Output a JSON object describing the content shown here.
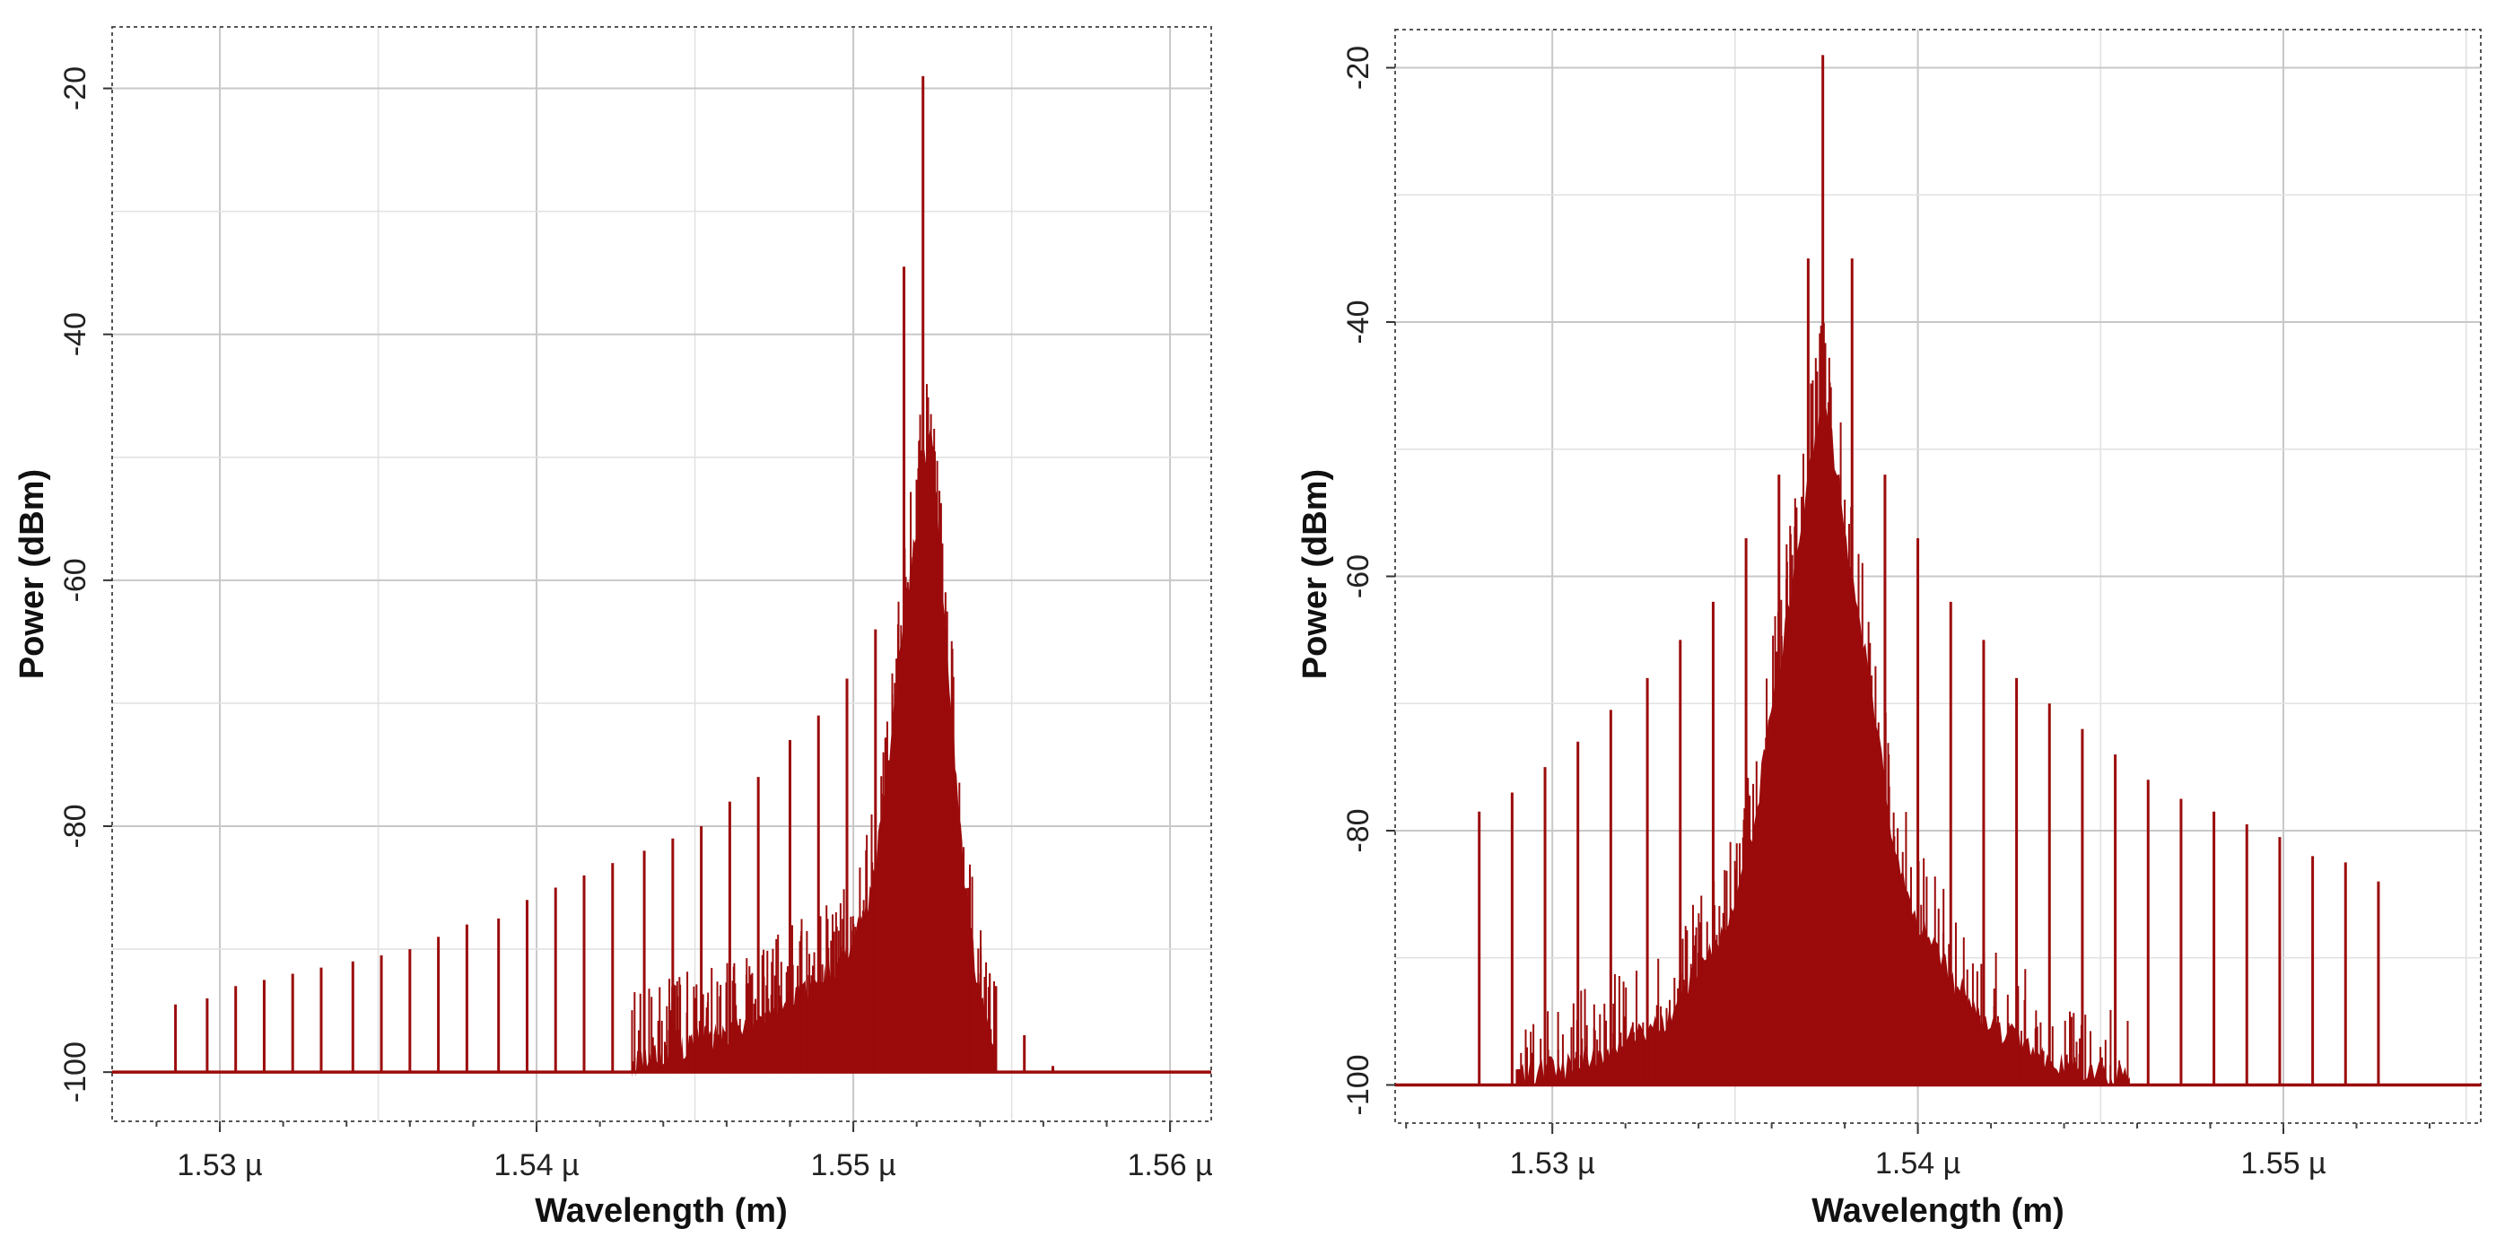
{
  "colors": {
    "trace": "#9b0b0b",
    "grid_major": "#c8c8c8",
    "grid_minor": "#e2e2e2",
    "frame": "#555555",
    "background": "#ffffff"
  },
  "chart_data": [
    {
      "type": "line",
      "title": "",
      "xlabel": "Wavelength (m)",
      "ylabel": "Power (dBm)",
      "xlim": [
        1.5266,
        1.5613
      ],
      "ylim": [
        -104,
        -15
      ],
      "x_ticks": [
        1.53,
        1.54,
        1.55,
        1.56
      ],
      "x_tick_labels": [
        "1.53 µ",
        "1.54 µ",
        "1.55 µ",
        "1.56 µ"
      ],
      "y_ticks": [
        -20,
        -40,
        -60,
        -80,
        -100
      ],
      "y_tick_labels": [
        "-20",
        "-40",
        "-60",
        "-80",
        "-100"
      ],
      "noise_floor": -100,
      "center_wavelength": 1.5522,
      "series": [
        {
          "name": "comb lines",
          "wavelengths": [
            1.5286,
            1.5296,
            1.5305,
            1.5314,
            1.5323,
            1.5332,
            1.5342,
            1.5351,
            1.536,
            1.5369,
            1.5378,
            1.5388,
            1.5397,
            1.5406,
            1.5415,
            1.5424,
            1.5434,
            1.5443,
            1.5452,
            1.5461,
            1.547,
            1.548,
            1.5489,
            1.5498,
            1.5507,
            1.5516,
            1.5522,
            1.5528,
            1.5536,
            1.5545,
            1.5554,
            1.5563
          ],
          "power_dbm": [
            -94.5,
            -94,
            -93,
            -92.5,
            -92,
            -91.5,
            -91,
            -90.5,
            -90,
            -89,
            -88,
            -87.5,
            -86,
            -85,
            -84,
            -83,
            -82,
            -81,
            -80,
            -78,
            -76,
            -73,
            -71,
            -68,
            -64,
            -34.5,
            -19,
            -57,
            -89,
            -93,
            -97,
            -99.5
          ]
        },
        {
          "name": "envelope",
          "wavelengths": [
            1.543,
            1.545,
            1.547,
            1.548,
            1.549,
            1.55,
            1.5505,
            1.551,
            1.5515,
            1.552,
            1.5522,
            1.5525,
            1.553,
            1.5535,
            1.554,
            1.5545
          ],
          "power_dbm": [
            -99.5,
            -97.5,
            -96,
            -94,
            -92.5,
            -89.5,
            -86,
            -78,
            -65,
            -55,
            -50,
            -48,
            -67,
            -84,
            -94,
            -98.5
          ]
        }
      ]
    },
    {
      "type": "line",
      "title": "",
      "xlabel": "Wavelength (m)",
      "ylabel": "Power (dBm)",
      "xlim": [
        1.5257,
        1.5554
      ],
      "ylim": [
        -103,
        -17
      ],
      "x_ticks": [
        1.53,
        1.54,
        1.55
      ],
      "x_tick_labels": [
        "1.53 µ",
        "1.54 µ",
        "1.55 µ"
      ],
      "y_ticks": [
        -20,
        -40,
        -60,
        -80,
        -100
      ],
      "y_tick_labels": [
        "-20",
        "-40",
        "-60",
        "-80",
        "-100"
      ],
      "noise_floor": -100,
      "center_wavelength": 1.5374,
      "series": [
        {
          "name": "comb lines",
          "wavelengths": [
            1.528,
            1.5289,
            1.5298,
            1.5307,
            1.5316,
            1.5326,
            1.5335,
            1.5344,
            1.5353,
            1.5362,
            1.537,
            1.5374,
            1.5382,
            1.5391,
            1.54,
            1.5409,
            1.5418,
            1.5427,
            1.5436,
            1.5445,
            1.5454,
            1.5463,
            1.5472,
            1.5481,
            1.549,
            1.5499,
            1.5508,
            1.5517,
            1.5526
          ],
          "power_dbm": [
            -78.5,
            -77,
            -75,
            -73,
            -70.5,
            -68,
            -65,
            -62,
            -57,
            -52,
            -35,
            -19,
            -35,
            -52,
            -57,
            -62,
            -65,
            -68,
            -70,
            -72,
            -74,
            -76,
            -77.5,
            -78.5,
            -79.5,
            -80.5,
            -82,
            -82.5,
            -84
          ]
        },
        {
          "name": "envelope",
          "wavelengths": [
            1.529,
            1.531,
            1.533,
            1.534,
            1.535,
            1.5355,
            1.536,
            1.5365,
            1.537,
            1.5374,
            1.5378,
            1.5383,
            1.5388,
            1.5393,
            1.5398,
            1.5408,
            1.5418,
            1.5438,
            1.5458
          ],
          "power_dbm": [
            -99.5,
            -98,
            -95,
            -91,
            -86,
            -80,
            -70,
            -62,
            -52,
            -45,
            -52,
            -62,
            -70,
            -80,
            -86,
            -91,
            -95,
            -98,
            -99.5
          ]
        }
      ]
    }
  ]
}
